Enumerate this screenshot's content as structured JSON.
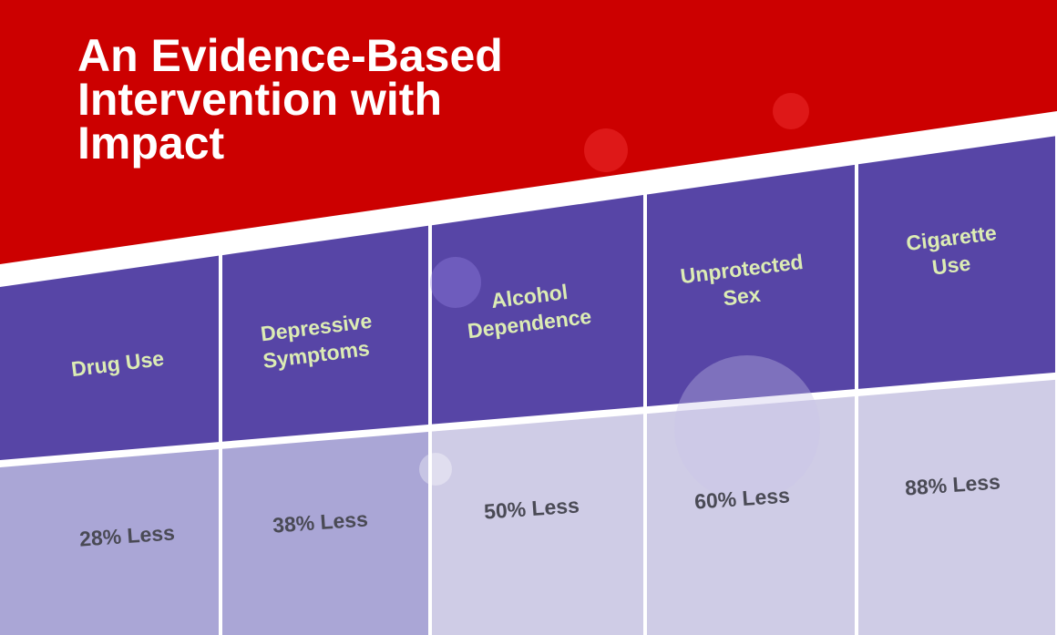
{
  "header": {
    "title_lines": [
      "An Evidence-Based",
      "Intervention with",
      "Impact"
    ]
  },
  "columns": [
    {
      "label_lines": [
        "Drug Use"
      ],
      "value": "28% Less"
    },
    {
      "label_lines": [
        "Depressive",
        "Symptoms"
      ],
      "value": "38% Less"
    },
    {
      "label_lines": [
        "Alcohol",
        "Dependence"
      ],
      "value": "50% Less"
    },
    {
      "label_lines": [
        "Unprotected",
        "Sex"
      ],
      "value": "60% Less"
    },
    {
      "label_lines": [
        "Cigarette",
        "Use"
      ],
      "value": "88% Less"
    }
  ]
}
